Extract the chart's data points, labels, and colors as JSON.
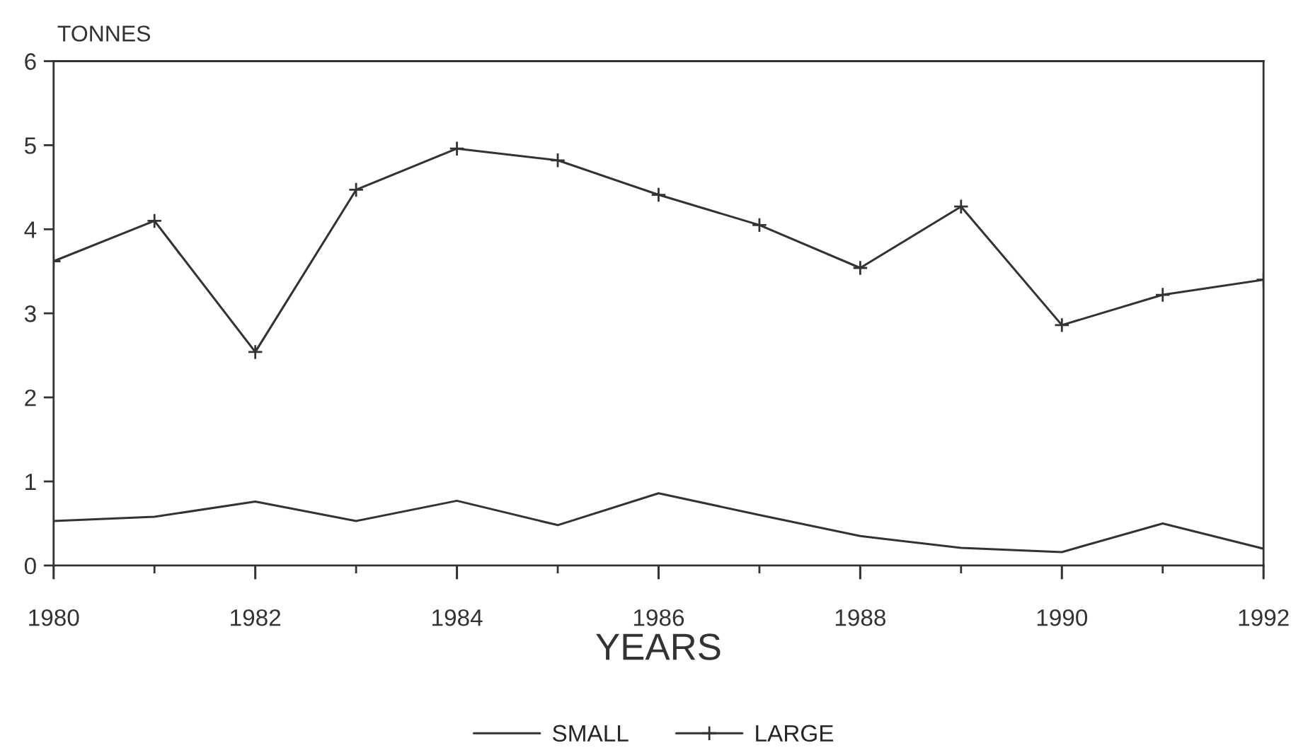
{
  "chart_data": {
    "type": "line",
    "xlabel": "YEARS",
    "ylabel": "TONNES",
    "x": [
      1980,
      1981,
      1982,
      1983,
      1984,
      1985,
      1986,
      1987,
      1988,
      1989,
      1990,
      1991,
      1992
    ],
    "series": [
      {
        "name": "SMALL",
        "color": "#333333",
        "marker": "none",
        "values": [
          0.53,
          0.58,
          0.76,
          0.53,
          0.77,
          0.48,
          0.86,
          0.6,
          0.35,
          0.21,
          0.16,
          0.5,
          0.2
        ]
      },
      {
        "name": "LARGE",
        "color": "#333333",
        "marker": "cross",
        "values": [
          3.62,
          4.1,
          2.54,
          4.47,
          4.96,
          4.82,
          4.41,
          4.05,
          3.54,
          4.27,
          2.86,
          3.22,
          3.4
        ]
      }
    ],
    "xlim": [
      1980,
      1992
    ],
    "ylim": [
      0,
      6
    ],
    "xticks": [
      1980,
      {
        "value": 1981,
        "label": null
      },
      1982,
      {
        "value": 1983,
        "label": null
      },
      1984,
      {
        "value": 1985,
        "label": null
      },
      1986,
      {
        "value": 1987,
        "label": null
      },
      1988,
      {
        "value": 1989,
        "label": null
      },
      1990,
      {
        "value": 1991,
        "label": null
      },
      1992
    ],
    "yticks": [
      0,
      1,
      2,
      3,
      4,
      5,
      6
    ],
    "grid": false,
    "legend": "bottom",
    "line_style": "solid"
  }
}
